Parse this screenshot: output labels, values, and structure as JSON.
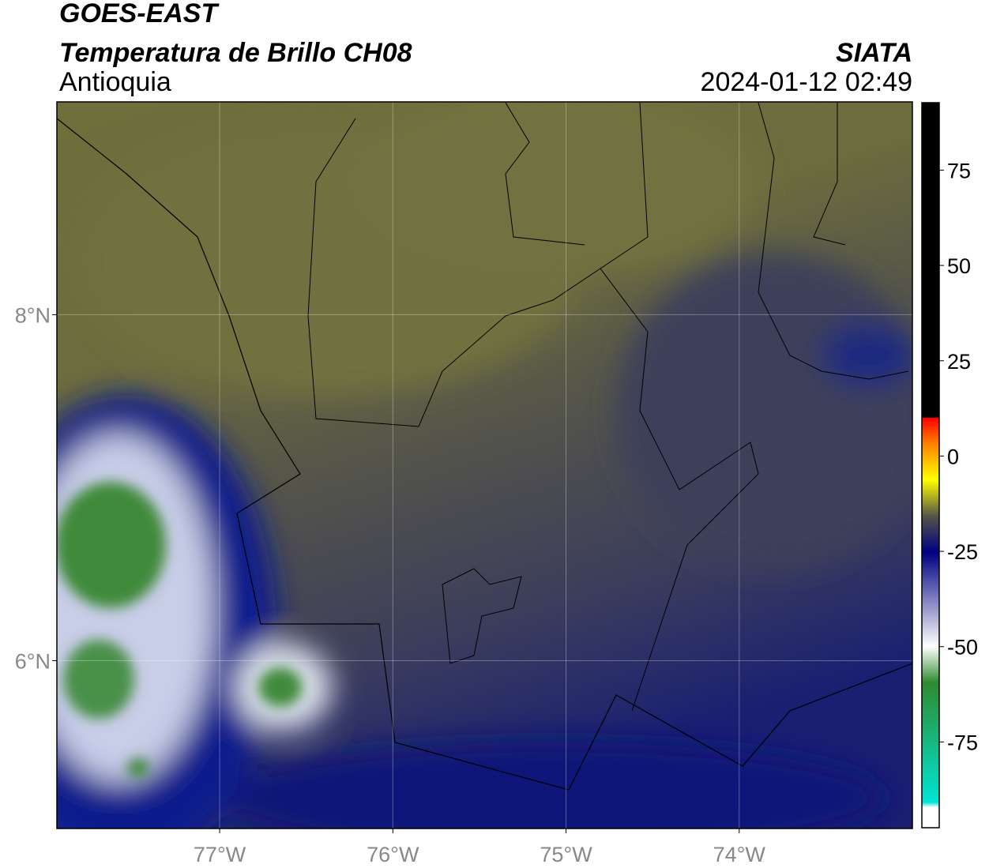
{
  "header": {
    "satellite": "GOES-EAST",
    "product": "Temperatura de Brillo CH08",
    "source": "SIATA",
    "region": "Antioquia",
    "datetime": "2024-01-12 02:49"
  },
  "map": {
    "xlim": [
      -77.94,
      -73.0
    ],
    "ylim": [
      5.03,
      9.23
    ],
    "xticks": [
      {
        "value": -77,
        "label": "77°W"
      },
      {
        "value": -76,
        "label": "76°W"
      },
      {
        "value": -75,
        "label": "75°W"
      },
      {
        "value": -74,
        "label": "74°W"
      }
    ],
    "yticks": [
      {
        "value": 8,
        "label": "8°N"
      },
      {
        "value": 6,
        "label": "6°N"
      }
    ],
    "grid": true
  },
  "colorbar": {
    "ylim": [
      -97.5,
      92.7
    ],
    "yticks": [
      75,
      50,
      25,
      0,
      -25,
      -50,
      -75
    ]
  }
}
